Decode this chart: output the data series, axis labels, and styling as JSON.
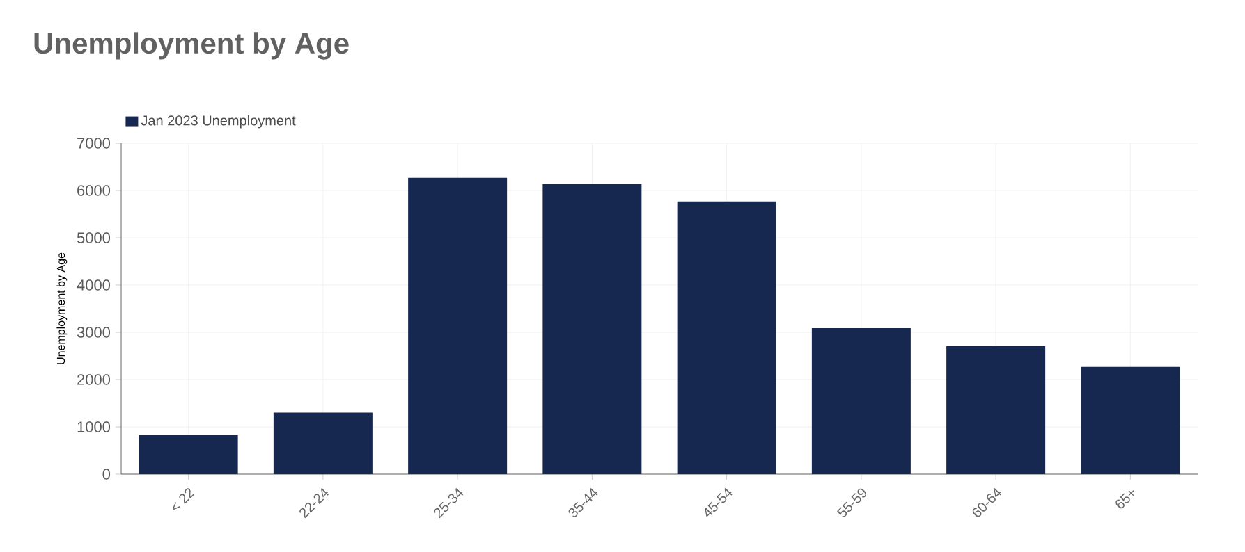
{
  "chart_data": {
    "type": "bar",
    "title": "Unemployment by Age",
    "ylabel": "Unemployment by Age",
    "categories": [
      "< 22",
      "22-24",
      "25-34",
      "35-44",
      "45-54",
      "55-59",
      "60-64",
      "65+"
    ],
    "series": [
      {
        "name": "Jan 2023 Unemployment",
        "color": "#16284f",
        "values": [
          830,
          1300,
          6270,
          6140,
          5770,
          3090,
          2710,
          2270
        ]
      }
    ],
    "ylim": [
      0,
      7000
    ],
    "yticks": [
      0,
      1000,
      2000,
      3000,
      4000,
      5000,
      6000,
      7000
    ],
    "grid": true,
    "legend": "top left"
  }
}
